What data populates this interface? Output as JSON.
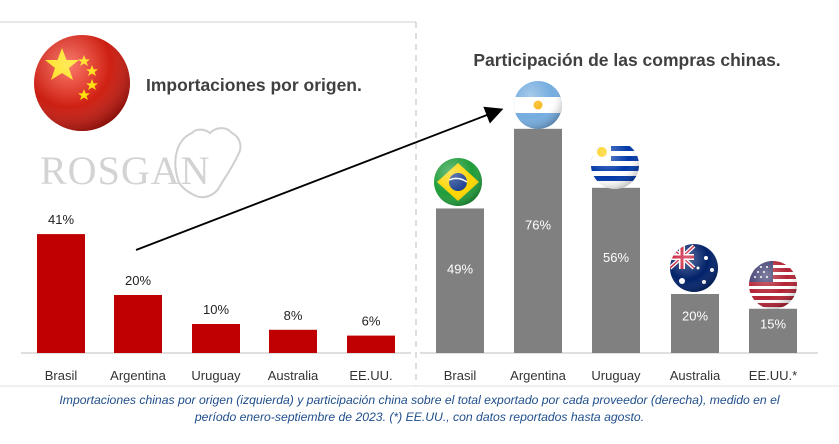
{
  "left_chart": {
    "title": "Importaciones por origen.",
    "logo_text": "ROSGAN",
    "flag_icon": "china-flag-icon"
  },
  "right_chart": {
    "title": "Participación de las compras chinas."
  },
  "caption": {
    "line1": "Importaciones chinas por origen (izquierda) y participación china sobre el total exportado por cada proveedor (derecha), medido en el",
    "line2": "período enero-septiembre de 2023. (*) EE.UU., con datos reportados hasta agosto."
  },
  "colors": {
    "left_bar": "#c00000",
    "right_bar": "#808080",
    "axis": "#bfbfbf",
    "caption": "#1f4e8c",
    "title": "#404040"
  },
  "chart_data": [
    {
      "type": "bar",
      "title": "Importaciones por origen.",
      "categories": [
        "Brasil",
        "Argentina",
        "Uruguay",
        "Australia",
        "EE.UU."
      ],
      "values": [
        41,
        20,
        10,
        8,
        6
      ],
      "labels": [
        "41%",
        "20%",
        "10%",
        "8%",
        "6%"
      ],
      "ylim": [
        0,
        100
      ]
    },
    {
      "type": "bar",
      "title": "Participación de las compras chinas.",
      "categories": [
        "Brasil",
        "Argentina",
        "Uruguay",
        "Australia",
        "EE.UU.*"
      ],
      "values": [
        49,
        76,
        56,
        20,
        15
      ],
      "labels": [
        "49%",
        "76%",
        "56%",
        "20%",
        "15%"
      ],
      "flags": [
        "brazil-flag-icon",
        "argentina-flag-icon",
        "uruguay-flag-icon",
        "australia-flag-icon",
        "usa-flag-icon"
      ],
      "ylim": [
        0,
        100
      ]
    }
  ]
}
